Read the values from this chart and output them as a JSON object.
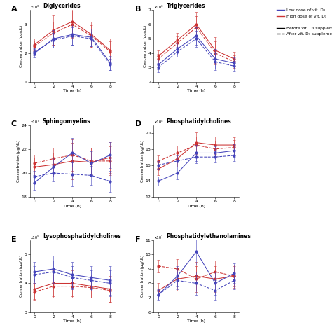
{
  "time": [
    0,
    2,
    4,
    6,
    8
  ],
  "panels": [
    {
      "label": "A",
      "title": "Diglycerides",
      "ylabel": "Concentration (μg/dL)",
      "scale": "x10⁸",
      "ylim": [
        1,
        3.5
      ],
      "yticks": [
        1,
        2,
        3
      ],
      "blue_solid": [
        2.0,
        2.5,
        2.65,
        2.55,
        1.65
      ],
      "blue_solid_err": [
        0.15,
        0.3,
        0.35,
        0.3,
        0.25
      ],
      "blue_dash": [
        2.05,
        2.45,
        2.6,
        2.5,
        1.6
      ],
      "blue_dash_err": [
        0.12,
        0.25,
        0.3,
        0.25,
        0.2
      ],
      "red_solid": [
        2.3,
        2.8,
        3.1,
        2.65,
        2.1
      ],
      "red_solid_err": [
        0.2,
        0.5,
        0.55,
        0.45,
        0.4
      ],
      "red_dash": [
        2.25,
        2.7,
        3.0,
        2.6,
        2.05
      ],
      "red_dash_err": [
        0.18,
        0.4,
        0.48,
        0.38,
        0.35
      ]
    },
    {
      "label": "B",
      "title": "Triglycerides",
      "ylabel": "Concentration (μg/dL)",
      "scale": "x10⁸",
      "ylim": [
        2,
        7
      ],
      "yticks": [
        2,
        3,
        4,
        5,
        6,
        7
      ],
      "blue_solid": [
        3.2,
        4.3,
        5.2,
        3.6,
        3.3
      ],
      "blue_solid_err": [
        0.35,
        0.4,
        0.6,
        0.7,
        0.4
      ],
      "blue_dash": [
        3.0,
        4.1,
        5.0,
        3.4,
        3.1
      ],
      "blue_dash_err": [
        0.3,
        0.35,
        0.55,
        0.6,
        0.35
      ],
      "red_solid": [
        3.8,
        4.9,
        6.0,
        4.2,
        3.6
      ],
      "red_solid_err": [
        0.4,
        0.5,
        0.85,
        0.9,
        0.5
      ],
      "red_dash": [
        3.6,
        4.7,
        5.8,
        4.0,
        3.4
      ],
      "red_dash_err": [
        0.35,
        0.45,
        0.75,
        0.8,
        0.45
      ]
    },
    {
      "label": "C",
      "title": "Sphingomyelins",
      "ylabel": "Concentration (μg/dL)",
      "scale": "x10⁷",
      "ylim": [
        18,
        24
      ],
      "yticks": [
        18,
        20,
        22,
        24
      ],
      "blue_solid": [
        19.2,
        20.5,
        21.7,
        20.8,
        21.5
      ],
      "blue_solid_err": [
        0.6,
        0.8,
        1.2,
        1.0,
        1.1
      ],
      "blue_dash": [
        19.7,
        20.0,
        19.9,
        19.8,
        19.3
      ],
      "blue_dash_err": [
        0.5,
        0.7,
        1.0,
        0.8,
        0.9
      ],
      "red_solid": [
        20.5,
        20.7,
        21.0,
        20.9,
        21.3
      ],
      "red_solid_err": [
        0.8,
        1.0,
        1.5,
        1.2,
        1.3
      ],
      "red_dash": [
        20.8,
        21.2,
        21.5,
        21.0,
        21.0
      ],
      "red_dash_err": [
        0.7,
        0.9,
        1.3,
        1.1,
        1.2
      ]
    },
    {
      "label": "D",
      "title": "Phosphatidylcholines",
      "ylabel": "Concentration (μg/dL)",
      "scale": "x10⁸",
      "ylim": [
        12,
        21
      ],
      "yticks": [
        12,
        14,
        16,
        18,
        20
      ],
      "blue_solid": [
        14.0,
        15.0,
        17.5,
        17.5,
        17.8
      ],
      "blue_solid_err": [
        0.6,
        0.8,
        1.0,
        0.8,
        0.8
      ],
      "blue_dash": [
        16.0,
        16.5,
        17.0,
        17.0,
        17.2
      ],
      "blue_dash_err": [
        0.5,
        0.7,
        0.8,
        0.7,
        0.7
      ],
      "red_solid": [
        15.5,
        16.8,
        18.8,
        18.5,
        18.5
      ],
      "red_solid_err": [
        0.8,
        1.0,
        1.3,
        1.1,
        1.0
      ],
      "red_dash": [
        16.5,
        17.5,
        18.5,
        18.0,
        18.2
      ],
      "red_dash_err": [
        0.7,
        0.9,
        1.1,
        1.0,
        0.9
      ]
    },
    {
      "label": "E",
      "title": "Lysophosphatidylcholines",
      "ylabel": "Concentration (μg/dL)",
      "scale": "x10⁵",
      "ylim": [
        3,
        5.5
      ],
      "yticks": [
        3,
        4,
        5
      ],
      "blue_solid": [
        4.4,
        4.5,
        4.3,
        4.2,
        4.1
      ],
      "blue_solid_err": [
        0.35,
        0.45,
        0.45,
        0.4,
        0.5
      ],
      "blue_dash": [
        4.3,
        4.4,
        4.2,
        4.1,
        4.0
      ],
      "blue_dash_err": [
        0.3,
        0.4,
        0.4,
        0.35,
        0.45
      ],
      "red_solid": [
        3.8,
        4.0,
        4.0,
        3.9,
        3.8
      ],
      "red_solid_err": [
        0.35,
        0.45,
        0.45,
        0.4,
        0.45
      ],
      "red_dash": [
        3.7,
        3.9,
        3.9,
        3.85,
        3.75
      ],
      "red_dash_err": [
        0.3,
        0.4,
        0.4,
        0.35,
        0.4
      ]
    },
    {
      "label": "F",
      "title": "Phosphatidylethanolamines",
      "ylabel": "Concentration (μg/dL)",
      "scale": "x10²",
      "ylim": [
        6,
        11
      ],
      "yticks": [
        6,
        7,
        8,
        9,
        10,
        11
      ],
      "blue_solid": [
        7.2,
        8.5,
        10.2,
        8.0,
        8.7
      ],
      "blue_solid_err": [
        0.4,
        0.7,
        0.9,
        0.8,
        0.7
      ],
      "blue_dash": [
        7.2,
        8.2,
        8.0,
        7.5,
        8.2
      ],
      "blue_dash_err": [
        0.35,
        0.6,
        0.8,
        0.7,
        0.6
      ],
      "red_solid": [
        7.5,
        8.3,
        8.5,
        8.3,
        8.5
      ],
      "red_solid_err": [
        0.5,
        0.8,
        1.0,
        0.9,
        0.8
      ],
      "red_dash": [
        9.2,
        9.0,
        8.3,
        8.8,
        8.5
      ],
      "red_dash_err": [
        0.45,
        0.7,
        0.9,
        0.8,
        0.7
      ]
    }
  ],
  "blue_color": "#4444bb",
  "red_color": "#cc3333",
  "marker_size": 2.0,
  "linewidth": 0.75,
  "capsize": 1.5,
  "elinewidth": 0.4,
  "capthick": 0.4,
  "legend_blue_solid": "Low dose of vit. D₃",
  "legend_red_solid": "High dose of vit. D₃",
  "legend_black_solid": "Before vit. D₃ supplementation",
  "legend_black_dash": "After vit. D₃ supplementation",
  "xlabel": "Time (h)"
}
